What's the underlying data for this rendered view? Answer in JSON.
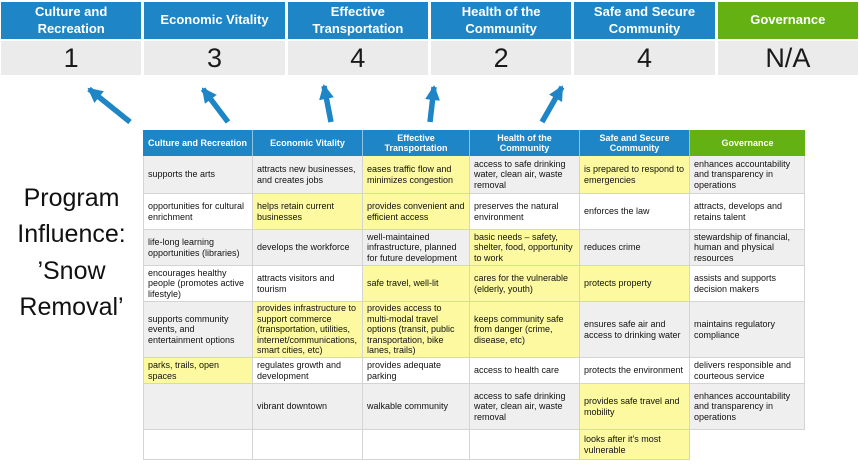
{
  "colors": {
    "blue": "#1E86C6",
    "green": "#63B112",
    "yellow": "#FCF9A0",
    "row_gray": "#EFEFEF",
    "score_bg": "#EBEBEB",
    "arrow": "#1E86C6"
  },
  "program_label": "Program Influence: ’Snow Removal’",
  "scoreboard": {
    "columns": [
      {
        "label": "Culture and Recreation",
        "score": "1",
        "accent": "blue"
      },
      {
        "label": "Economic Vitality",
        "score": "3",
        "accent": "blue"
      },
      {
        "label": "Effective Transportation",
        "score": "4",
        "accent": "blue"
      },
      {
        "label": "Health of the Community",
        "score": "2",
        "accent": "blue"
      },
      {
        "label": "Safe and Secure Community",
        "score": "4",
        "accent": "blue"
      },
      {
        "label": "Governance",
        "score": "N/A",
        "accent": "green"
      }
    ]
  },
  "matrix": {
    "headers": [
      {
        "label": "Culture and Recreation",
        "accent": "blue"
      },
      {
        "label": "Economic Vitality",
        "accent": "blue"
      },
      {
        "label": "Effective Transportation",
        "accent": "blue"
      },
      {
        "label": "Health of the Community",
        "accent": "blue"
      },
      {
        "label": "Safe and Secure Community",
        "accent": "blue"
      },
      {
        "label": "Governance",
        "accent": "green"
      }
    ],
    "rows": [
      [
        {
          "text": "supports the arts"
        },
        {
          "text": "attracts new businesses, and creates jobs"
        },
        {
          "text": "eases traffic flow and minimizes congestion",
          "highlight": true
        },
        {
          "text": "access to safe drinking water, clean air, waste removal"
        },
        {
          "text": "is prepared to respond to emergencies",
          "highlight": true
        },
        {
          "text": "enhances accountability and transparency in operations"
        }
      ],
      [
        {
          "text": "opportunities for cultural enrichment"
        },
        {
          "text": "helps retain current businesses",
          "highlight": true
        },
        {
          "text": "provides convenient and efficient access",
          "highlight": true
        },
        {
          "text": "preserves the natural environment"
        },
        {
          "text": "enforces the law"
        },
        {
          "text": "attracts, develops and retains talent"
        }
      ],
      [
        {
          "text": "life-long learning opportunities (libraries)"
        },
        {
          "text": "develops the workforce"
        },
        {
          "text": "well-maintained infrastructure, planned for future development"
        },
        {
          "text": "basic needs – safety, shelter, food, opportunity to work",
          "highlight": true
        },
        {
          "text": "reduces crime"
        },
        {
          "text": "stewardship of financial, human and physical resources"
        }
      ],
      [
        {
          "text": "encourages healthy people (promotes active lifestyle)"
        },
        {
          "text": "attracts visitors and tourism"
        },
        {
          "text": "safe travel, well-lit",
          "highlight": true
        },
        {
          "text": "cares for the vulnerable (elderly, youth)",
          "highlight": true
        },
        {
          "text": "protects property",
          "highlight": true
        },
        {
          "text": "assists and supports decision makers"
        }
      ],
      [
        {
          "text": "supports community events, and entertainment options"
        },
        {
          "text": "provides infrastructure to support commerce (transportation, utilities, internet/communications, smart cities, etc)",
          "highlight": true
        },
        {
          "text": "provides access to multi-modal travel options (transit, public transportation, bike lanes, trails)",
          "highlight": true
        },
        {
          "text": "keeps community safe from danger (crime, disease, etc)",
          "highlight": true
        },
        {
          "text": "ensures safe air and access to drinking water"
        },
        {
          "text": "maintains regulatory compliance"
        }
      ],
      [
        {
          "text": "parks, trails, open spaces",
          "highlight": true
        },
        {
          "text": "regulates growth and development"
        },
        {
          "text": "provides adequate parking"
        },
        {
          "text": "access to health care"
        },
        {
          "text": "protects the environment"
        },
        {
          "text": "delivers responsible and courteous service"
        }
      ],
      [
        {
          "text": ""
        },
        {
          "text": "vibrant downtown"
        },
        {
          "text": "walkable community"
        },
        {
          "text": "access to safe drinking water, clean air, waste removal"
        },
        {
          "text": "provides safe travel and mobility",
          "highlight": true
        },
        {
          "text": "enhances accountability and transparency in operations"
        }
      ],
      [
        {
          "text": ""
        },
        {
          "text": ""
        },
        {
          "text": ""
        },
        {
          "text": ""
        },
        {
          "text": "looks after it's most vulnerable",
          "highlight": true
        },
        {
          "text": "",
          "none": true
        }
      ]
    ]
  }
}
